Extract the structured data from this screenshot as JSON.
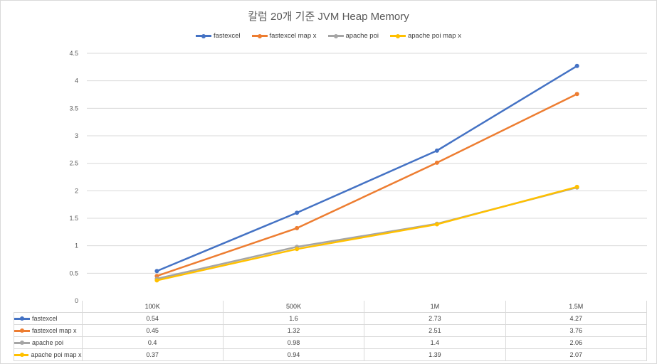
{
  "chart_data": {
    "type": "line",
    "title": "칼럼 20개 기준 JVM Heap Memory",
    "categories": [
      "100K",
      "500K",
      "1M",
      "1.5M"
    ],
    "series": [
      {
        "name": "fastexcel",
        "values": [
          0.54,
          1.6,
          2.73,
          4.27
        ],
        "color": "#4472C4"
      },
      {
        "name": "fastexcel map x",
        "values": [
          0.45,
          1.32,
          2.51,
          3.76
        ],
        "color": "#ED7D31"
      },
      {
        "name": "apache poi",
        "values": [
          0.4,
          0.98,
          1.4,
          2.06
        ],
        "color": "#A5A5A5"
      },
      {
        "name": "apache poi map x",
        "values": [
          0.37,
          0.94,
          1.39,
          2.07
        ],
        "color": "#FFC000"
      }
    ],
    "y_ticks": [
      "0",
      "0.5",
      "1",
      "1.5",
      "2",
      "2.5",
      "3",
      "3.5",
      "4",
      "4.5"
    ],
    "ylim": [
      0,
      4.5
    ],
    "grid": true,
    "legend": "top",
    "data_table": true
  }
}
